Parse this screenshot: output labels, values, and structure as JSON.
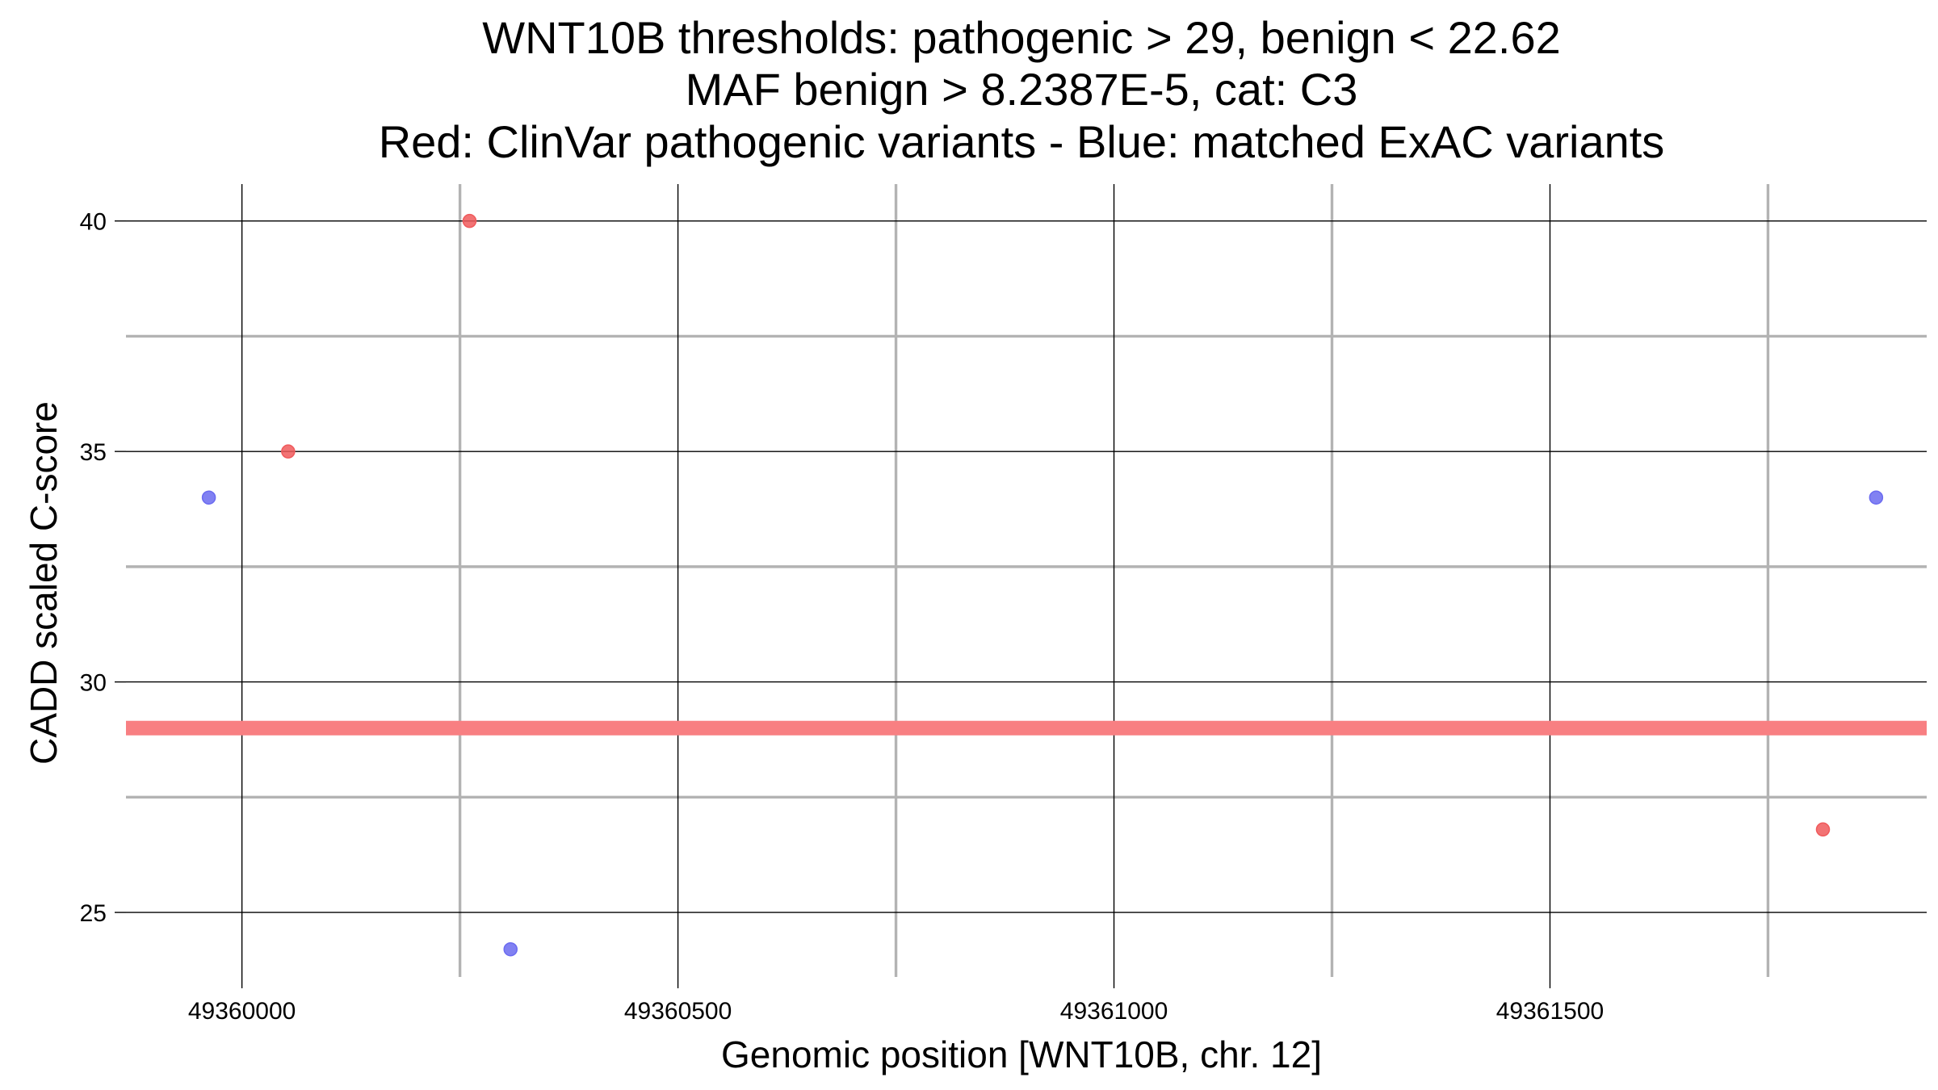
{
  "chart_data": {
    "type": "scatter",
    "title_lines": [
      "WNT10B thresholds: pathogenic > 29, benign < 22.62",
      "MAF benign > 8.2387E-5, cat: C3",
      "Red: ClinVar pathogenic variants - Blue: matched ExAC variants"
    ],
    "xlabel": "Genomic position [WNT10B, chr. 12]",
    "ylabel": "CADD scaled C-score",
    "xlim": [
      49359867,
      49361932
    ],
    "ylim": [
      23.6,
      40.8
    ],
    "x_major_ticks": [
      49360000,
      49360500,
      49361000,
      49361500
    ],
    "x_tick_labels": [
      "49360000",
      "49360500",
      "49361000",
      "49361500"
    ],
    "x_minor_ticks": [
      49360250,
      49360750,
      49361250,
      49361750
    ],
    "y_major_ticks": [
      25,
      30,
      35,
      40
    ],
    "y_tick_labels": [
      "25",
      "30",
      "35",
      "40"
    ],
    "y_minor_ticks": [
      27.5,
      32.5,
      37.5
    ],
    "grid": true,
    "threshold": {
      "y": 29,
      "color": "#f87f82"
    },
    "series": [
      {
        "color": "#f05a5c",
        "points": [
          {
            "x": 49360053,
            "y": 35
          },
          {
            "x": 49360261,
            "y": 40
          },
          {
            "x": 49361813,
            "y": 26.8
          }
        ]
      },
      {
        "color": "#6b6bf0",
        "points": [
          {
            "x": 49359962,
            "y": 34
          },
          {
            "x": 49360308,
            "y": 24.2
          },
          {
            "x": 49361874,
            "y": 34
          }
        ]
      }
    ]
  }
}
